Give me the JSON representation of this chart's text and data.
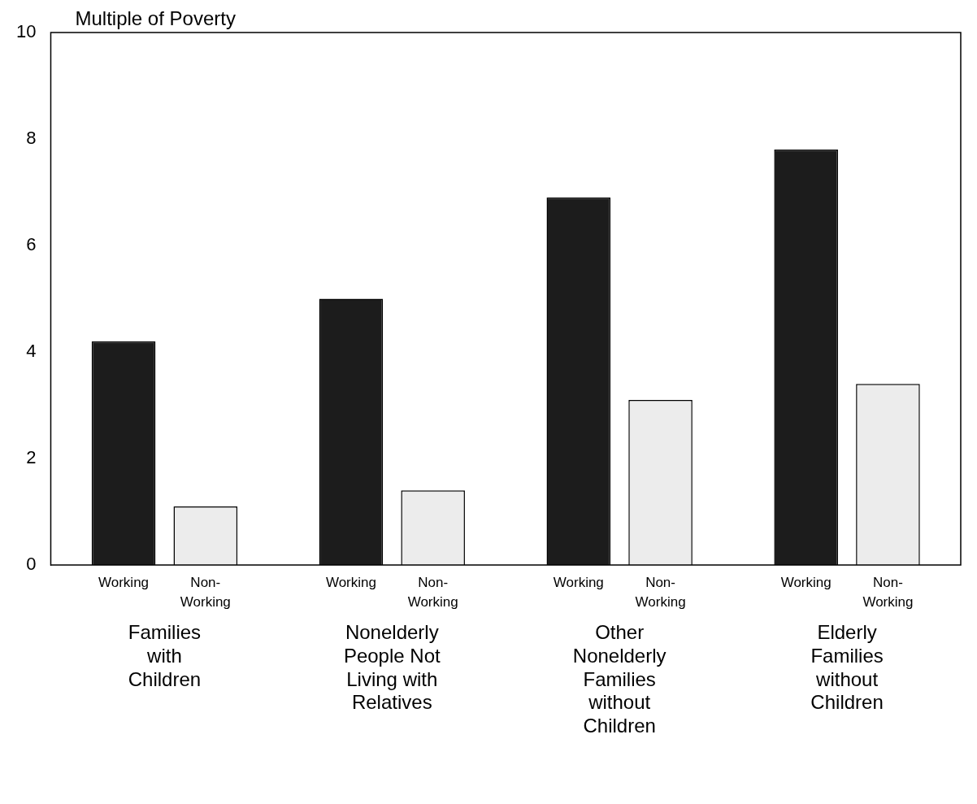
{
  "chart_data": {
    "type": "bar",
    "ylabel": "Multiple of Poverty",
    "categories": [
      "Families with Children",
      "Nonelderly People Not Living with Relatives",
      "Other Nonelderly Families without Children",
      "Elderly Families without Children"
    ],
    "series": [
      {
        "name": "Working",
        "color": "#1c1c1c",
        "values": [
          4.2,
          5.0,
          6.9,
          7.8
        ]
      },
      {
        "name": "Non-Working",
        "color": "#ececec",
        "values": [
          1.1,
          1.4,
          3.1,
          3.4
        ]
      }
    ],
    "ylim": [
      0,
      10
    ],
    "yticks": [
      0,
      2,
      4,
      6,
      8,
      10
    ],
    "grid": false,
    "legend": false
  }
}
